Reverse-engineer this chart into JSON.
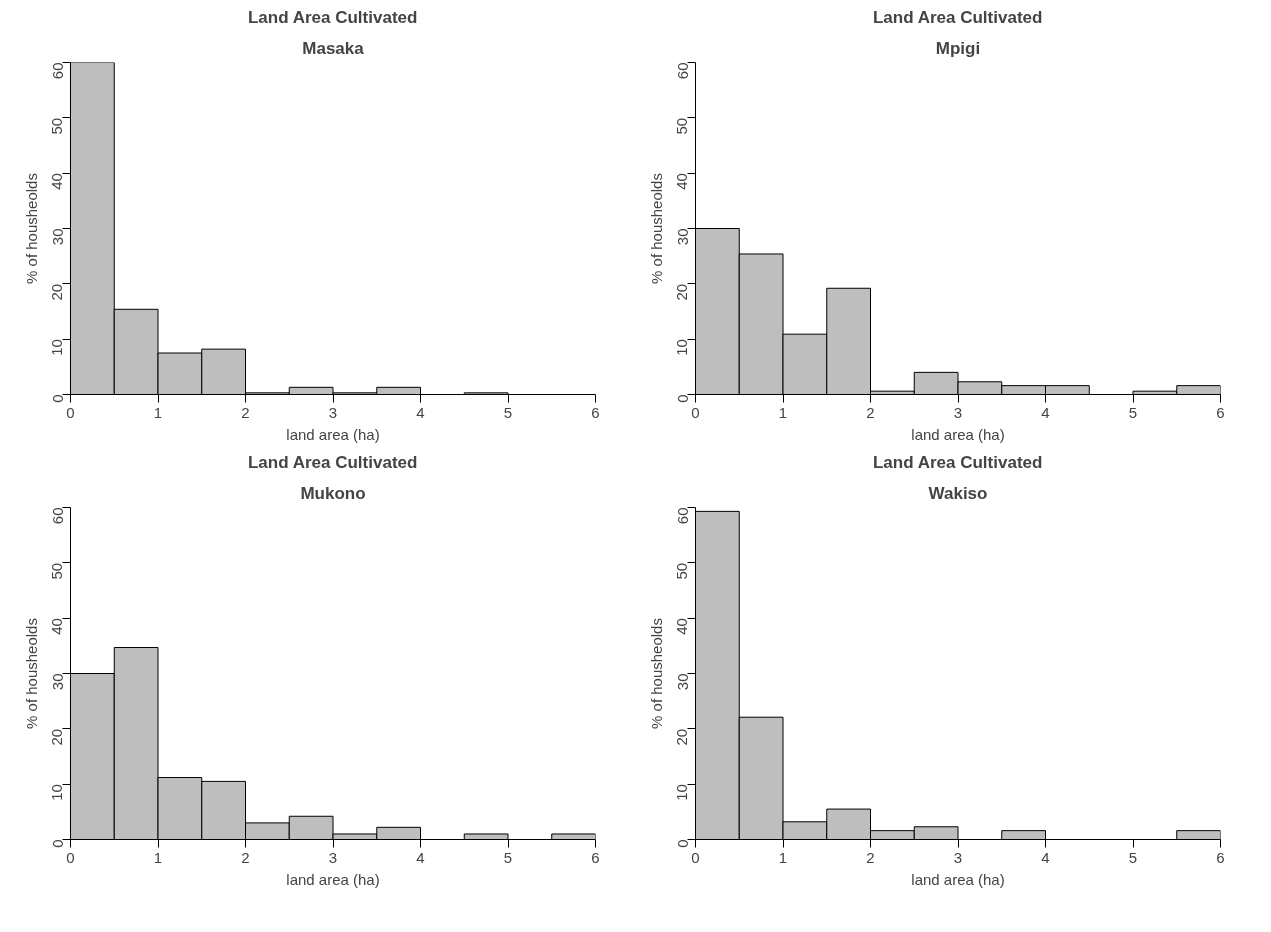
{
  "chart_data": [
    {
      "type": "histogram",
      "title": "Land Area Cultivated",
      "subtitle": "Masaka",
      "xlabel": "land area (ha)",
      "ylabel": "% of housheolds",
      "color": "#bebebe",
      "bins": [
        0,
        0.5,
        1,
        1.5,
        2,
        2.5,
        3,
        3.5,
        4,
        4.5,
        5,
        5.5,
        6
      ],
      "values": [
        60,
        15.4,
        7.5,
        8.2,
        0.3,
        1.3,
        0.3,
        1.3,
        0,
        0.3,
        0,
        0
      ],
      "xlim": [
        0,
        6
      ],
      "ylim": [
        0,
        60
      ],
      "xticks": [
        0,
        1,
        2,
        3,
        4,
        5,
        6
      ],
      "yticks": [
        0,
        10,
        20,
        30,
        40,
        50,
        60
      ],
      "grid": false
    },
    {
      "type": "histogram",
      "title": "Land Area Cultivated",
      "subtitle": "Mpigi",
      "xlabel": "land area (ha)",
      "ylabel": "% of housheolds",
      "color": "#bebebe",
      "bins": [
        0,
        0.5,
        1,
        1.5,
        2,
        2.5,
        3,
        3.5,
        4,
        4.5,
        5,
        5.5,
        6
      ],
      "values": [
        30,
        25.4,
        10.9,
        19.2,
        0.6,
        4,
        2.3,
        1.6,
        1.6,
        0,
        0.6,
        1.6
      ],
      "xlim": [
        0,
        6
      ],
      "ylim": [
        0,
        60
      ],
      "xticks": [
        0,
        1,
        2,
        3,
        4,
        5,
        6
      ],
      "yticks": [
        0,
        10,
        20,
        30,
        40,
        50,
        60
      ],
      "grid": false
    },
    {
      "type": "histogram",
      "title": "Land Area Cultivated",
      "subtitle": "Mukono",
      "xlabel": "land area (ha)",
      "ylabel": "% of housheolds",
      "color": "#bebebe",
      "bins": [
        0,
        0.5,
        1,
        1.5,
        2,
        2.5,
        3,
        3.5,
        4,
        4.5,
        5,
        5.5,
        6
      ],
      "values": [
        30,
        34.7,
        11.2,
        10.5,
        3,
        4.2,
        1,
        2.2,
        0,
        1,
        0,
        1
      ],
      "xlim": [
        0,
        6
      ],
      "ylim": [
        0,
        60
      ],
      "xticks": [
        0,
        1,
        2,
        3,
        4,
        5,
        6
      ],
      "yticks": [
        0,
        10,
        20,
        30,
        40,
        50,
        60
      ],
      "grid": false
    },
    {
      "type": "histogram",
      "title": "Land Area Cultivated",
      "subtitle": "Wakiso",
      "xlabel": "land area (ha)",
      "ylabel": "% of housheolds",
      "color": "#bebebe",
      "bins": [
        0,
        0.5,
        1,
        1.5,
        2,
        2.5,
        3,
        3.5,
        4,
        4.5,
        5,
        5.5,
        6
      ],
      "values": [
        59.3,
        22.1,
        3.2,
        5.5,
        1.6,
        2.3,
        0,
        1.6,
        0,
        0,
        0,
        1.6
      ],
      "xlim": [
        0,
        6
      ],
      "ylim": [
        0,
        60
      ],
      "xticks": [
        0,
        1,
        2,
        3,
        4,
        5,
        6
      ],
      "yticks": [
        0,
        10,
        20,
        30,
        40,
        50,
        60
      ],
      "grid": false
    }
  ]
}
